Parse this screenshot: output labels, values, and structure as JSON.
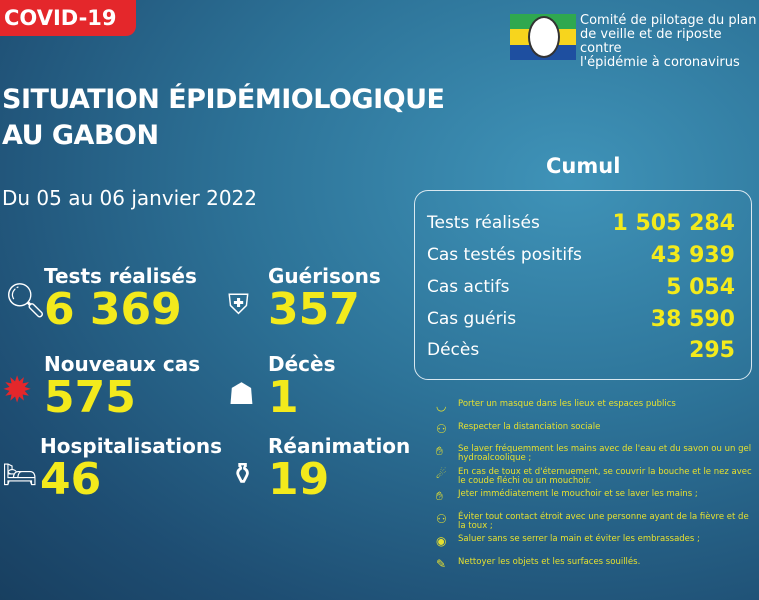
{
  "header": {
    "tag": "COVID-19",
    "title_line1": "SITUATION ÉPIDÉMIOLOGIQUE",
    "title_line2": "AU GABON",
    "date": "Du 05 au 06 janvier 2022",
    "org": [
      "Comité de pilotage du plan",
      "de veille et de riposte contre",
      "l'épidémie à coronavirus"
    ]
  },
  "colors": {
    "accent": "#f3ea1c",
    "tag": "#e4272b"
  },
  "stats": [
    {
      "label": "Tests réalisés",
      "value": "6 369",
      "icon": "magnifier-icon"
    },
    {
      "label": "Guérisons",
      "value": "357",
      "icon": "shield-virus-icon"
    },
    {
      "label": "Nouveaux cas",
      "value": "575",
      "icon": "virus-icon"
    },
    {
      "label": "Décès",
      "value": "1",
      "icon": "person-cross-icon"
    },
    {
      "label": "Hospitalisations",
      "value": "46",
      "icon": "hospital-bed-icon"
    },
    {
      "label": "Réanimation",
      "value": "19",
      "icon": "oxygen-tank-icon"
    }
  ],
  "cumul": {
    "title": "Cumul",
    "rows": [
      {
        "label": "Tests réalisés",
        "value": "1 505 284"
      },
      {
        "label": "Cas testés positifs",
        "value": "43 939"
      },
      {
        "label": "Cas actifs",
        "value": "5 054"
      },
      {
        "label": "Cas guéris",
        "value": "38 590"
      },
      {
        "label": "Décès",
        "value": "295"
      }
    ]
  },
  "tips": [
    "Porter un masque dans les lieux et espaces publics",
    "Respecter la distanciation sociale",
    "Se laver fréquemment les mains avec de l'eau et du savon ou un gel hydroalcoolique ;",
    "En cas de toux et d'éternuement, se couvrir la bouche et le nez avec le coude fléchi ou un mouchoir.",
    "Jeter immédiatement le mouchoir et se laver les mains ;",
    "Éviter tout contact étroit avec une personne ayant de la fièvre et de la toux ;",
    "Saluer sans se serrer la main et éviter les embrassades ;",
    "Nettoyer les objets et les surfaces souillés."
  ]
}
